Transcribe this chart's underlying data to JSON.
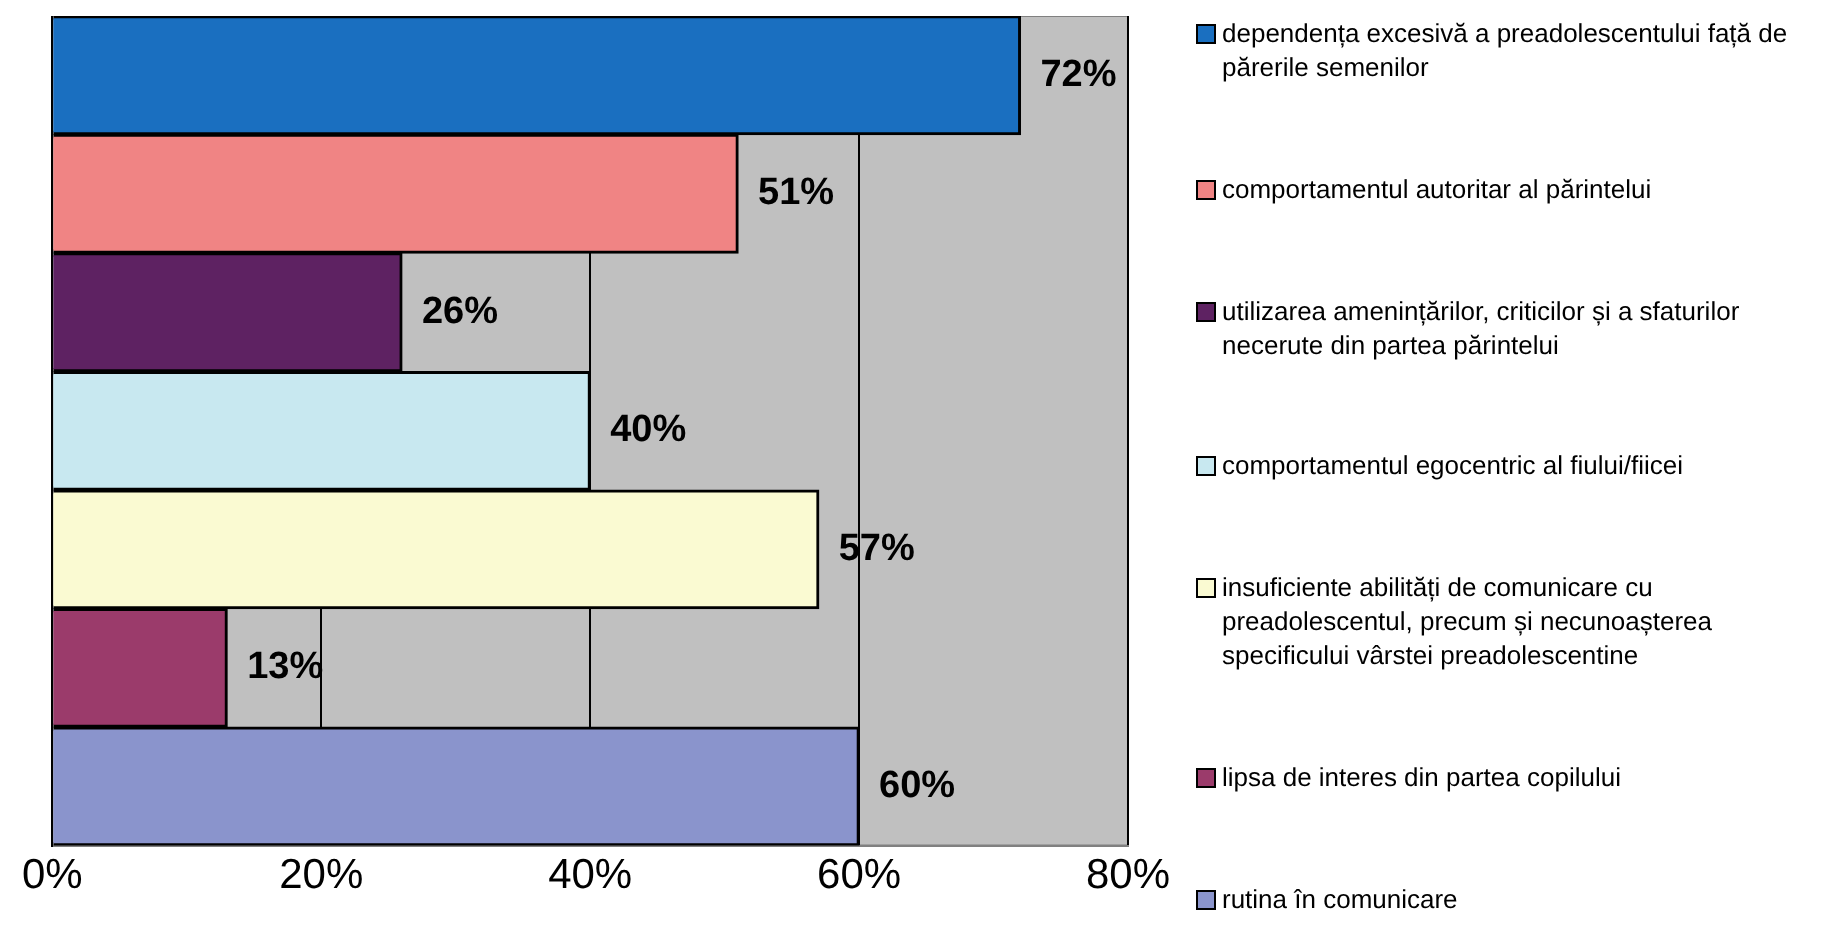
{
  "chart_data": {
    "type": "bar",
    "orientation": "horizontal",
    "categories": [
      null,
      null,
      null,
      null,
      null,
      null,
      null
    ],
    "series": [
      {
        "name": "dependența excesivă a preadolescentului față de părerile semenilor",
        "color": "#1a6fc0",
        "values": [
          72,
          null,
          null,
          null,
          null,
          null,
          null
        ],
        "value_labels": [
          "72%",
          null,
          null,
          null,
          null,
          null,
          null
        ]
      },
      {
        "name": "comportamentul autoritar al părintelui",
        "color": "#f08484",
        "values": [
          null,
          51,
          null,
          null,
          null,
          null,
          null
        ],
        "value_labels": [
          null,
          "51%",
          null,
          null,
          null,
          null,
          null
        ]
      },
      {
        "name": "utilizarea amenințărilor, criticilor și a sfaturilor necerute din partea părintelui",
        "color": "#5e2262",
        "values": [
          null,
          null,
          26,
          null,
          null,
          null,
          null
        ],
        "value_labels": [
          null,
          null,
          "26%",
          null,
          null,
          null,
          null
        ]
      },
      {
        "name": "comportamentul egocentric al fiului/fiicei",
        "color": "#c8e8f0",
        "values": [
          null,
          null,
          null,
          40,
          null,
          null,
          null
        ],
        "value_labels": [
          null,
          null,
          null,
          "40%",
          null,
          null,
          null
        ]
      },
      {
        "name": "insuficiente abilități de comunicare cu preadolescentul, precum și necunoașterea specificului vârstei preadolescentine",
        "color": "#fafad2",
        "values": [
          null,
          null,
          null,
          null,
          57,
          null,
          null
        ],
        "value_labels": [
          null,
          null,
          null,
          null,
          "57%",
          null,
          null
        ]
      },
      {
        "name": "lipsa de interes din partea copilului",
        "color": "#9b3b6b",
        "values": [
          null,
          null,
          null,
          null,
          null,
          13,
          null
        ],
        "value_labels": [
          null,
          null,
          null,
          null,
          null,
          "13%",
          null
        ]
      },
      {
        "name": "rutina în comunicare",
        "color": "#8a94cc",
        "values": [
          null,
          null,
          null,
          null,
          null,
          null,
          60
        ],
        "value_labels": [
          null,
          null,
          null,
          null,
          null,
          null,
          "60%"
        ]
      }
    ],
    "xlim": [
      0,
      80
    ],
    "xticks": [
      {
        "value": 0,
        "label": "0%"
      },
      {
        "value": 20,
        "label": "20%"
      },
      {
        "value": 40,
        "label": "40%"
      },
      {
        "value": 60,
        "label": "60%"
      },
      {
        "value": 80,
        "label": "80%"
      }
    ],
    "grid": "x",
    "legend": "right",
    "tick_labels": "x"
  }
}
